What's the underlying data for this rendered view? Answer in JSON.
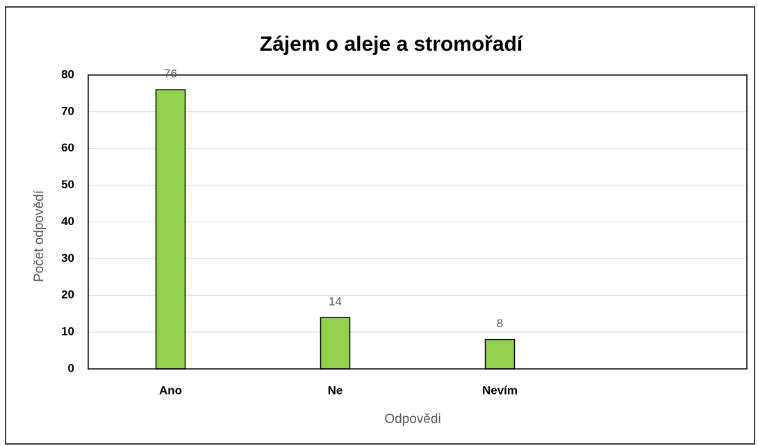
{
  "chart_data": {
    "type": "bar",
    "title": "Zájem o aleje a stromořadí",
    "x_label": "Odpovědi",
    "y_label": "Počet odpovědí",
    "categories": [
      "Ano",
      "Ne",
      "Nevím",
      null
    ],
    "values": [
      76,
      14,
      8,
      null
    ],
    "color": "#92d050",
    "ylim": [
      0,
      80
    ],
    "yticks": [
      0,
      10,
      20,
      30,
      40,
      50,
      60,
      70,
      80
    ],
    "grid": true
  }
}
